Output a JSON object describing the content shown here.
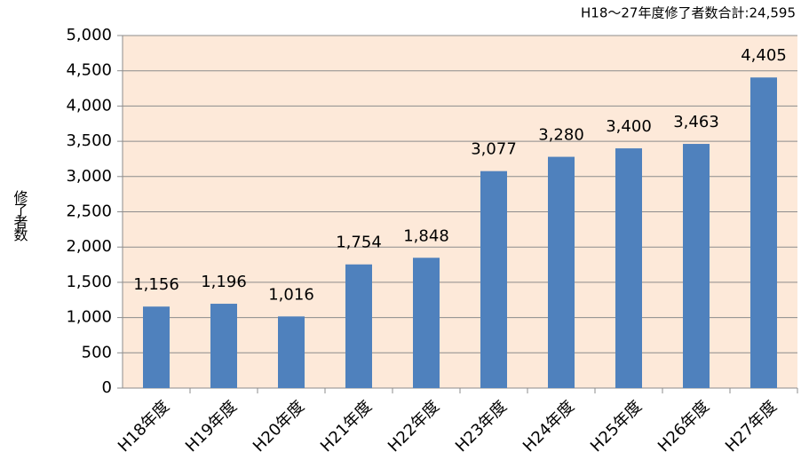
{
  "chart_data": {
    "type": "bar",
    "annotation": "H18～27年度修了者数合計:24,595",
    "y_label": "修了者数",
    "categories": [
      "H18年度",
      "H19年度",
      "H20年度",
      "H21年度",
      "H22年度",
      "H23年度",
      "H24年度",
      "H25年度",
      "H26年度",
      "H27年度"
    ],
    "values": [
      1156,
      1196,
      1016,
      1754,
      1848,
      3077,
      3280,
      3400,
      3463,
      4405
    ],
    "value_labels": [
      "1,156",
      "1,196",
      "1,016",
      "1,754",
      "1,848",
      "3,077",
      "3,280",
      "3,400",
      "3,463",
      "4,405"
    ],
    "color": "#4f81bd",
    "background": "#fde9d9",
    "ylim": [
      0,
      5000
    ],
    "yticks": [
      0,
      500,
      {
        "value": 1000,
        "label": "1,000"
      },
      {
        "value": 1500,
        "label": "1,500"
      },
      {
        "value": 2000,
        "label": "2,000"
      },
      {
        "value": 2500,
        "label": "2,500"
      },
      {
        "value": 3000,
        "label": "3,000"
      },
      {
        "value": 3500,
        "label": "3,500"
      },
      {
        "value": 4000,
        "label": "4,000"
      },
      {
        "value": 4500,
        "label": "4,500"
      },
      {
        "value": 5000,
        "label": "5,000"
      }
    ],
    "grid": true
  }
}
